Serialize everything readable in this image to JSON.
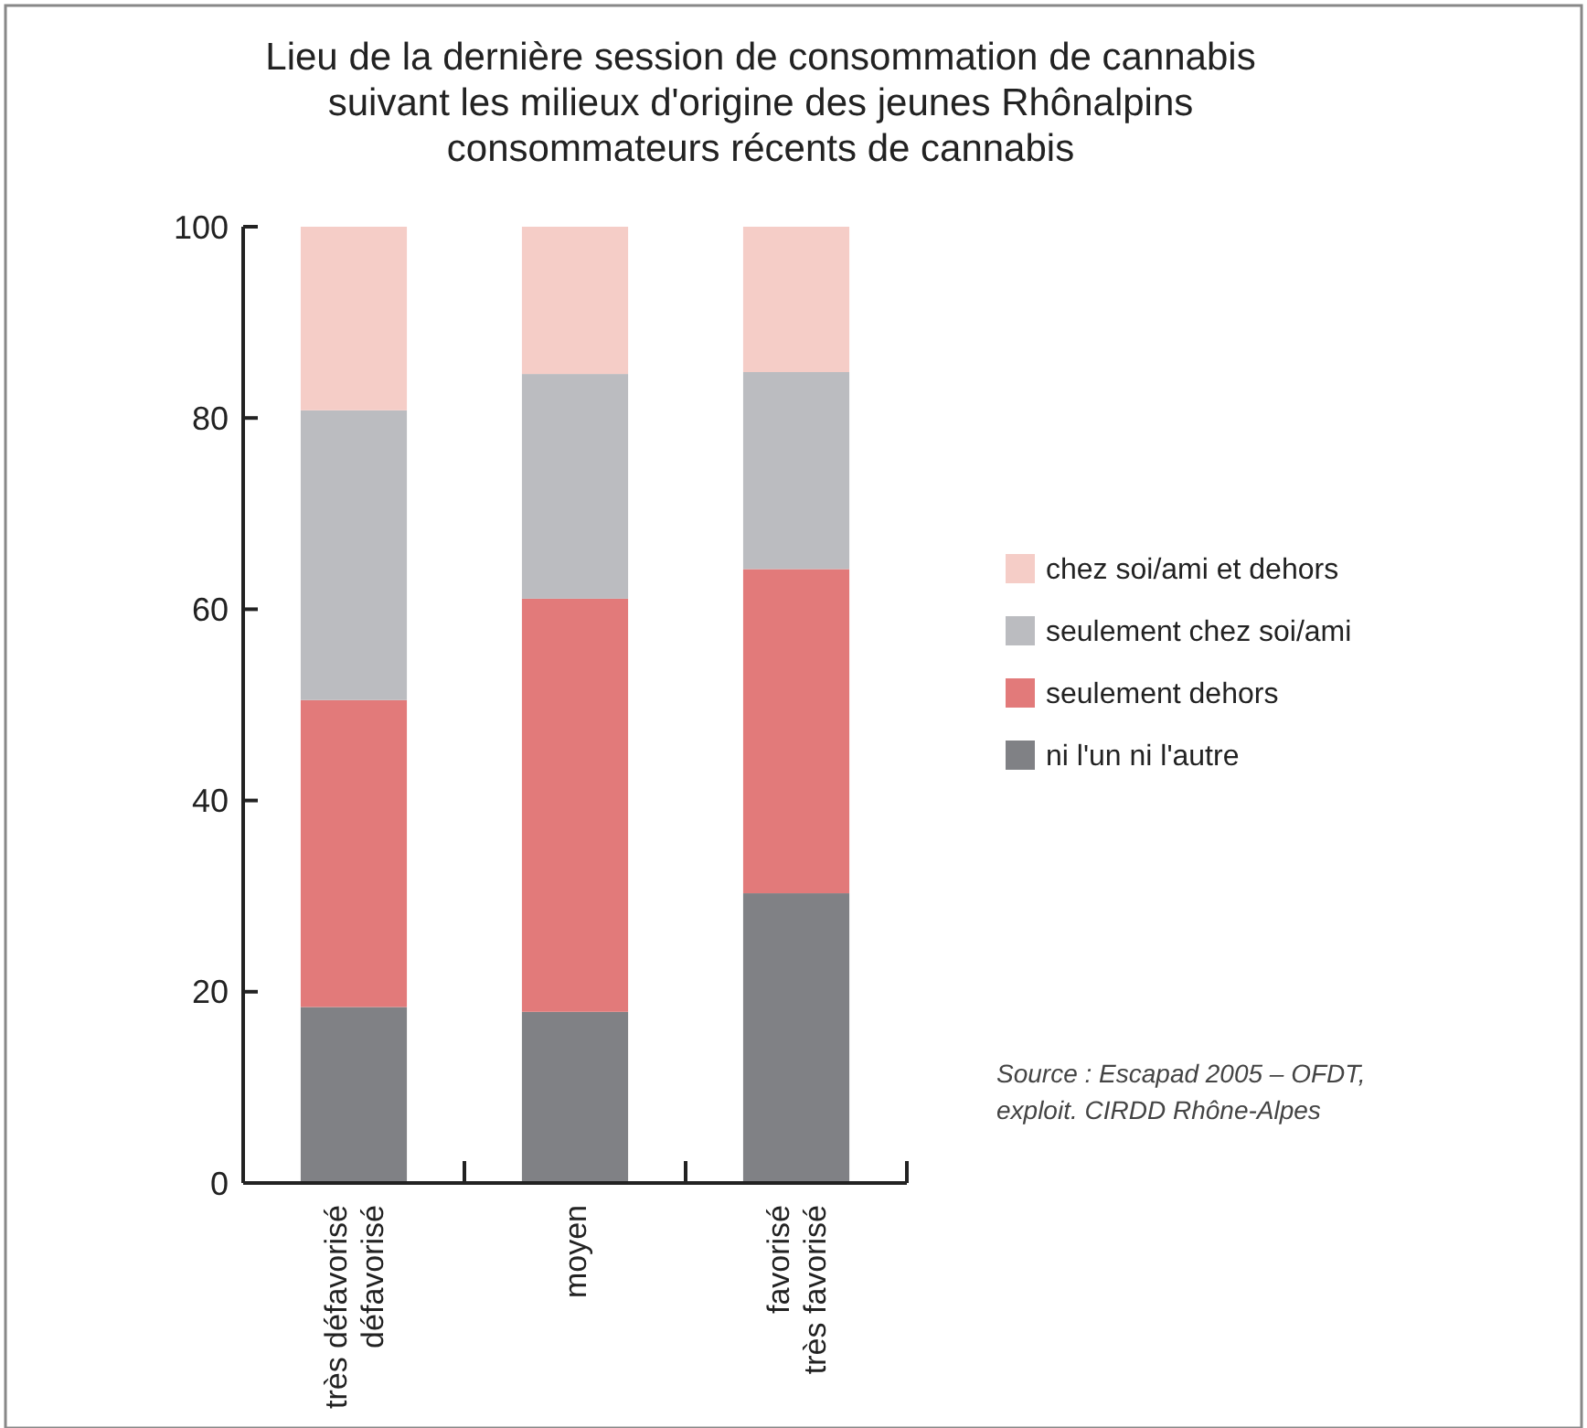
{
  "chart_data": {
    "type": "bar",
    "stacked": true,
    "title": "Lieu de la dernière session de consommation de cannabis\nsuivant les milieux d'origine des jeunes Rhônalpins\nconsommateurs récents de cannabis",
    "categories": [
      "très défavorisé\ndéfavorisé",
      "moyen",
      "favorisé\ntrès favorisé"
    ],
    "series": [
      {
        "name": "ni l'un ni l'autre",
        "color": "#808185",
        "values": [
          18.4,
          17.9,
          30.3
        ]
      },
      {
        "name": "seulement dehors",
        "color": "#e27a7a",
        "values": [
          32.1,
          43.2,
          33.9
        ]
      },
      {
        "name": "seulement chez soi/ami",
        "color": "#bbbcc0",
        "values": [
          30.3,
          23.5,
          20.6
        ]
      },
      {
        "name": "chez soi/ami et dehors",
        "color": "#f5cdc7",
        "values": [
          19.2,
          15.4,
          15.2
        ]
      }
    ],
    "ylim": [
      0,
      100
    ],
    "yticks": [
      0,
      20,
      40,
      60,
      80,
      100
    ],
    "legend": "right",
    "annotations": [
      "Source : Escapad 2005 – OFDT,\nexploit. CIRDD Rhône-Alpes"
    ]
  }
}
